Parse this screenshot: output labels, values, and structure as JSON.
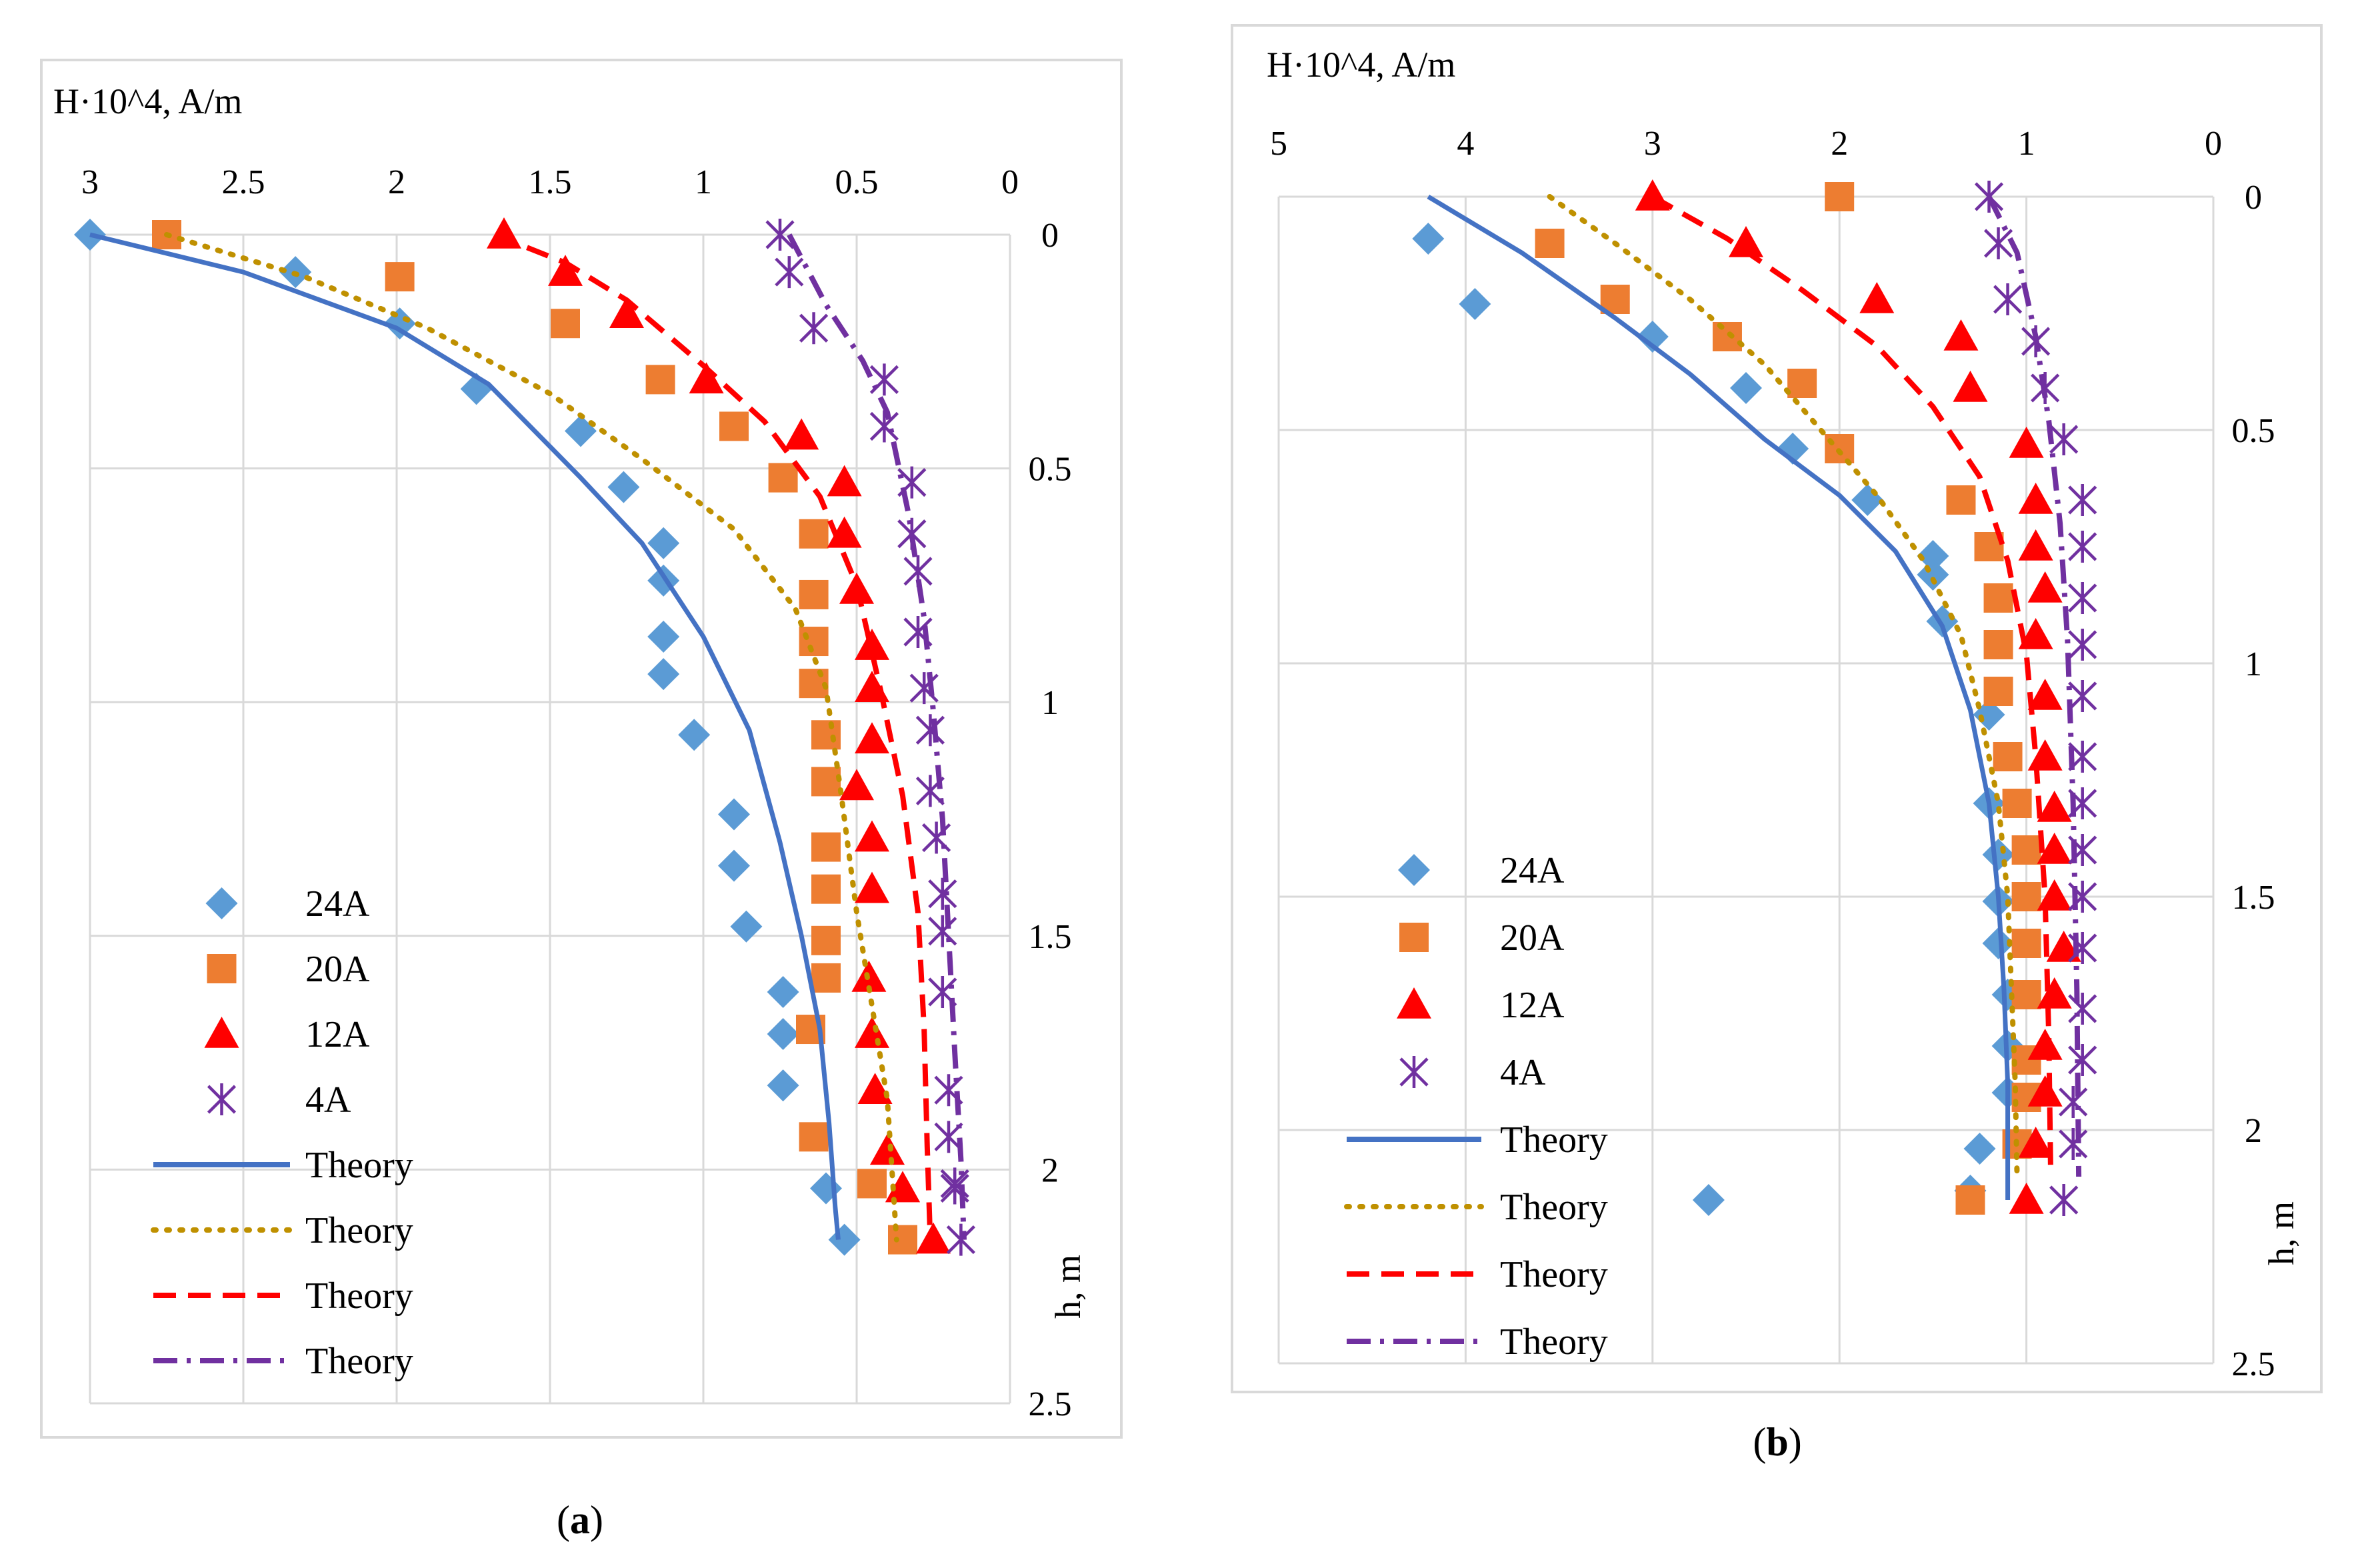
{
  "panel_labels": [
    "a",
    "b"
  ],
  "colors": {
    "24A": "#5B9BD5",
    "20A": "#ED7D31",
    "12A": "#FF0000",
    "4A": "#7030A0",
    "theory_24A": "#4472C4",
    "theory_20A": "#BF9000",
    "theory_12A": "#FF0000",
    "theory_4A": "#7030A0",
    "grid": "#D9D9D9",
    "frame": "#D9D9D9"
  },
  "chart_data": [
    {
      "type": "scatter",
      "panel": "a",
      "xlabel": "H·10^4, A/m",
      "ylabel": "h, m",
      "xlim": [
        3,
        0
      ],
      "ylim": [
        0,
        2.5
      ],
      "x_ticks": [
        "3",
        "2.5",
        "2",
        "1.5",
        "1",
        "0.5",
        "0"
      ],
      "y_ticks": [
        "0",
        "0.5",
        "1",
        "1.5",
        "2",
        "2.5"
      ],
      "legend_position": "bottom-left",
      "series": [
        {
          "name": "24A",
          "kind": "markers",
          "marker": "diamond",
          "color_key": "24A",
          "x": [
            3.0,
            2.33,
            1.99,
            1.74,
            1.4,
            1.26,
            1.13,
            1.13,
            1.13,
            1.13,
            1.03,
            0.9,
            0.9,
            0.86,
            0.74,
            0.74,
            0.74,
            0.6,
            0.54
          ],
          "y": [
            0.0,
            0.08,
            0.19,
            0.33,
            0.42,
            0.54,
            0.66,
            0.74,
            0.86,
            0.94,
            1.07,
            1.24,
            1.35,
            1.48,
            1.62,
            1.71,
            1.82,
            2.04,
            2.15
          ]
        },
        {
          "name": "20A",
          "kind": "markers",
          "marker": "square",
          "color_key": "20A",
          "x": [
            2.75,
            1.99,
            1.45,
            1.14,
            0.9,
            0.74,
            0.64,
            0.64,
            0.64,
            0.64,
            0.6,
            0.6,
            0.6,
            0.6,
            0.6,
            0.6,
            0.65,
            0.64,
            0.45,
            0.35
          ],
          "y": [
            0.0,
            0.09,
            0.19,
            0.31,
            0.41,
            0.52,
            0.64,
            0.77,
            0.87,
            0.96,
            1.07,
            1.17,
            1.31,
            1.4,
            1.51,
            1.59,
            1.7,
            1.93,
            2.03,
            2.15
          ]
        },
        {
          "name": "12A",
          "kind": "markers",
          "marker": "triangle",
          "color_key": "12A",
          "x": [
            1.65,
            1.45,
            1.25,
            0.99,
            0.68,
            0.54,
            0.54,
            0.5,
            0.45,
            0.45,
            0.45,
            0.5,
            0.45,
            0.45,
            0.46,
            0.45,
            0.44,
            0.4,
            0.35,
            0.35,
            0.25
          ],
          "y": [
            0.0,
            0.08,
            0.17,
            0.31,
            0.43,
            0.53,
            0.64,
            0.76,
            0.88,
            0.97,
            1.08,
            1.18,
            1.29,
            1.4,
            1.59,
            1.71,
            1.83,
            1.96,
            2.04,
            2.04,
            2.15
          ]
        },
        {
          "name": "4A",
          "kind": "markers",
          "marker": "asterisk",
          "color_key": "4A",
          "x": [
            0.75,
            0.72,
            0.64,
            0.41,
            0.41,
            0.32,
            0.32,
            0.3,
            0.3,
            0.28,
            0.26,
            0.26,
            0.24,
            0.22,
            0.22,
            0.22,
            0.2,
            0.2,
            0.18,
            0.18,
            0.16
          ],
          "y": [
            0.0,
            0.08,
            0.2,
            0.31,
            0.41,
            0.53,
            0.64,
            0.72,
            0.85,
            0.97,
            1.06,
            1.19,
            1.29,
            1.41,
            1.49,
            1.62,
            1.83,
            1.93,
            2.03,
            2.04,
            2.15
          ]
        },
        {
          "name": "Theory",
          "kind": "line",
          "dash": "solid",
          "color_key": "theory_24A",
          "x": [
            3.0,
            2.5,
            2.0,
            1.7,
            1.4,
            1.2,
            1.0,
            0.85,
            0.75,
            0.68,
            0.62,
            0.59,
            0.57,
            0.56
          ],
          "y": [
            0.0,
            0.08,
            0.2,
            0.32,
            0.52,
            0.66,
            0.86,
            1.06,
            1.3,
            1.5,
            1.7,
            1.9,
            2.08,
            2.15
          ]
        },
        {
          "name": "Theory",
          "kind": "line",
          "dash": "dot",
          "color_key": "theory_20A",
          "x": [
            2.75,
            2.3,
            1.9,
            1.5,
            1.2,
            0.9,
            0.7,
            0.6,
            0.55,
            0.5,
            0.45,
            0.4,
            0.38,
            0.37
          ],
          "y": [
            0.0,
            0.09,
            0.2,
            0.34,
            0.48,
            0.63,
            0.8,
            0.97,
            1.2,
            1.45,
            1.65,
            1.85,
            2.05,
            2.15
          ]
        },
        {
          "name": "Theory",
          "kind": "line",
          "dash": "dash",
          "color_key": "theory_12A",
          "x": [
            1.68,
            1.45,
            1.25,
            1.0,
            0.8,
            0.62,
            0.5,
            0.42,
            0.35,
            0.3,
            0.28,
            0.27,
            0.26
          ],
          "y": [
            0.0,
            0.06,
            0.14,
            0.28,
            0.4,
            0.56,
            0.75,
            0.98,
            1.2,
            1.45,
            1.7,
            1.95,
            2.15
          ]
        },
        {
          "name": "Theory",
          "kind": "line",
          "dash": "dashdot",
          "color_key": "theory_4A",
          "x": [
            0.72,
            0.6,
            0.48,
            0.4,
            0.33,
            0.28,
            0.25,
            0.22,
            0.2,
            0.18,
            0.16,
            0.15
          ],
          "y": [
            0.0,
            0.15,
            0.27,
            0.38,
            0.6,
            0.82,
            1.02,
            1.25,
            1.5,
            1.75,
            1.98,
            2.15
          ]
        }
      ]
    },
    {
      "type": "scatter",
      "panel": "b",
      "xlabel": "H·10^4, A/m",
      "ylabel": "h, m",
      "xlim": [
        5,
        0
      ],
      "ylim": [
        0,
        2.5
      ],
      "x_ticks": [
        "5",
        "4",
        "3",
        "2",
        "1",
        "0"
      ],
      "y_ticks": [
        "0",
        "0.5",
        "1",
        "1.5",
        "2",
        "2.5"
      ],
      "legend_position": "bottom-left",
      "series": [
        {
          "name": "24A",
          "kind": "markers",
          "marker": "diamond",
          "color_key": "24A",
          "x": [
            4.2,
            3.95,
            3.0,
            2.5,
            2.25,
            1.85,
            1.5,
            1.5,
            1.45,
            1.2,
            1.2,
            1.15,
            1.15,
            1.15,
            1.1,
            1.1,
            1.1,
            1.25,
            1.3,
            2.7
          ],
          "y": [
            0.09,
            0.23,
            0.3,
            0.41,
            0.54,
            0.65,
            0.77,
            0.81,
            0.91,
            1.11,
            1.3,
            1.41,
            1.51,
            1.6,
            1.71,
            1.82,
            1.92,
            2.04,
            2.13,
            2.15
          ]
        },
        {
          "name": "20A",
          "kind": "markers",
          "marker": "square",
          "color_key": "20A",
          "x": [
            2.0,
            3.55,
            3.2,
            2.6,
            2.2,
            2.0,
            1.35,
            1.2,
            1.15,
            1.15,
            1.15,
            1.1,
            1.05,
            1.0,
            1.0,
            1.0,
            1.0,
            1.0,
            1.0,
            1.05,
            1.3
          ],
          "y": [
            0.0,
            0.1,
            0.22,
            0.3,
            0.4,
            0.54,
            0.65,
            0.75,
            0.86,
            0.96,
            1.06,
            1.2,
            1.3,
            1.4,
            1.5,
            1.6,
            1.71,
            1.85,
            1.93,
            2.03,
            2.15
          ]
        },
        {
          "name": "12A",
          "kind": "markers",
          "marker": "triangle",
          "color_key": "12A",
          "x": [
            3.0,
            2.5,
            1.8,
            1.35,
            1.3,
            1.0,
            0.95,
            0.95,
            0.9,
            0.95,
            0.9,
            0.9,
            0.85,
            0.85,
            0.85,
            0.8,
            0.85,
            0.9,
            0.9,
            0.95,
            1.0
          ],
          "y": [
            0.0,
            0.1,
            0.22,
            0.3,
            0.41,
            0.53,
            0.65,
            0.75,
            0.84,
            0.94,
            1.07,
            1.2,
            1.31,
            1.4,
            1.5,
            1.61,
            1.71,
            1.82,
            1.92,
            2.03,
            2.15
          ]
        },
        {
          "name": "4A",
          "kind": "markers",
          "marker": "asterisk",
          "color_key": "4A",
          "x": [
            1.2,
            1.15,
            1.1,
            0.95,
            0.9,
            0.8,
            0.7,
            0.7,
            0.7,
            0.7,
            0.7,
            0.7,
            0.7,
            0.7,
            0.7,
            0.7,
            0.7,
            0.7,
            0.75,
            0.75,
            0.8
          ],
          "y": [
            0.0,
            0.1,
            0.22,
            0.31,
            0.41,
            0.52,
            0.65,
            0.75,
            0.86,
            0.96,
            1.07,
            1.2,
            1.3,
            1.4,
            1.5,
            1.61,
            1.74,
            1.85,
            1.94,
            2.03,
            2.15
          ]
        },
        {
          "name": "Theory",
          "kind": "line",
          "dash": "solid",
          "color_key": "theory_24A",
          "x": [
            4.2,
            3.7,
            3.2,
            2.8,
            2.4,
            2.0,
            1.7,
            1.45,
            1.3,
            1.2,
            1.15,
            1.12,
            1.1,
            1.1
          ],
          "y": [
            0.0,
            0.12,
            0.26,
            0.38,
            0.52,
            0.64,
            0.76,
            0.92,
            1.1,
            1.3,
            1.5,
            1.7,
            1.9,
            2.15
          ]
        },
        {
          "name": "Theory",
          "kind": "line",
          "dash": "dot",
          "color_key": "theory_20A",
          "x": [
            3.55,
            3.2,
            2.8,
            2.4,
            2.1,
            1.8,
            1.55,
            1.35,
            1.25,
            1.15,
            1.1,
            1.08,
            1.06,
            1.05
          ],
          "y": [
            0.0,
            0.1,
            0.22,
            0.36,
            0.5,
            0.64,
            0.78,
            0.94,
            1.1,
            1.3,
            1.5,
            1.7,
            1.9,
            2.1
          ]
        },
        {
          "name": "Theory",
          "kind": "line",
          "dash": "dash",
          "color_key": "theory_12A",
          "x": [
            3.0,
            2.6,
            2.2,
            1.8,
            1.5,
            1.25,
            1.1,
            1.0,
            0.95,
            0.9,
            0.88,
            0.87
          ],
          "y": [
            0.0,
            0.09,
            0.2,
            0.32,
            0.45,
            0.6,
            0.78,
            0.98,
            1.2,
            1.5,
            1.8,
            2.1
          ]
        },
        {
          "name": "Theory",
          "kind": "line",
          "dash": "dashdot",
          "color_key": "theory_4A",
          "x": [
            1.2,
            1.05,
            0.95,
            0.88,
            0.82,
            0.78,
            0.75,
            0.73,
            0.72
          ],
          "y": [
            0.0,
            0.12,
            0.3,
            0.48,
            0.7,
            0.95,
            1.3,
            1.7,
            2.1
          ]
        }
      ]
    }
  ]
}
